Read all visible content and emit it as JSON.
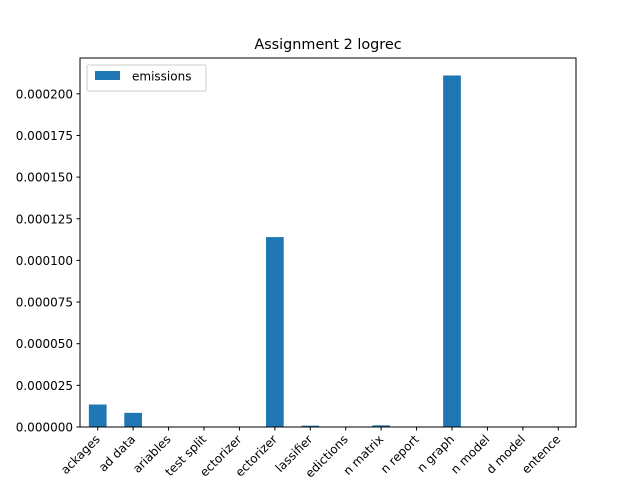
{
  "chart_data": {
    "type": "bar",
    "title": "Assignment 2 logrec",
    "xlabel": "",
    "ylabel": "",
    "categories": [
      "ackages",
      "ad data",
      "ariables",
      "test split",
      "ectorizer",
      "ectorizer",
      "lassifier",
      "edictions",
      "n matrix",
      "n report",
      "n graph",
      "n model",
      "d model",
      "entence"
    ],
    "series": [
      {
        "name": "emissions",
        "color": "#1f77b4",
        "values": [
          1.35e-05,
          8.5e-06,
          0.0,
          0.0,
          0.0,
          0.000114,
          8e-07,
          0.0,
          1e-06,
          0.0,
          0.000211,
          0.0,
          0.0,
          0.0
        ]
      }
    ],
    "ylim": [
      0,
      0.0002215
    ],
    "yticks": [
      "0.000000",
      "0.000025",
      "0.000050",
      "0.000075",
      "0.000100",
      "0.000125",
      "0.000150",
      "0.000175",
      "0.000200"
    ],
    "legend": {
      "placement": "top-left"
    },
    "grid": false
  }
}
